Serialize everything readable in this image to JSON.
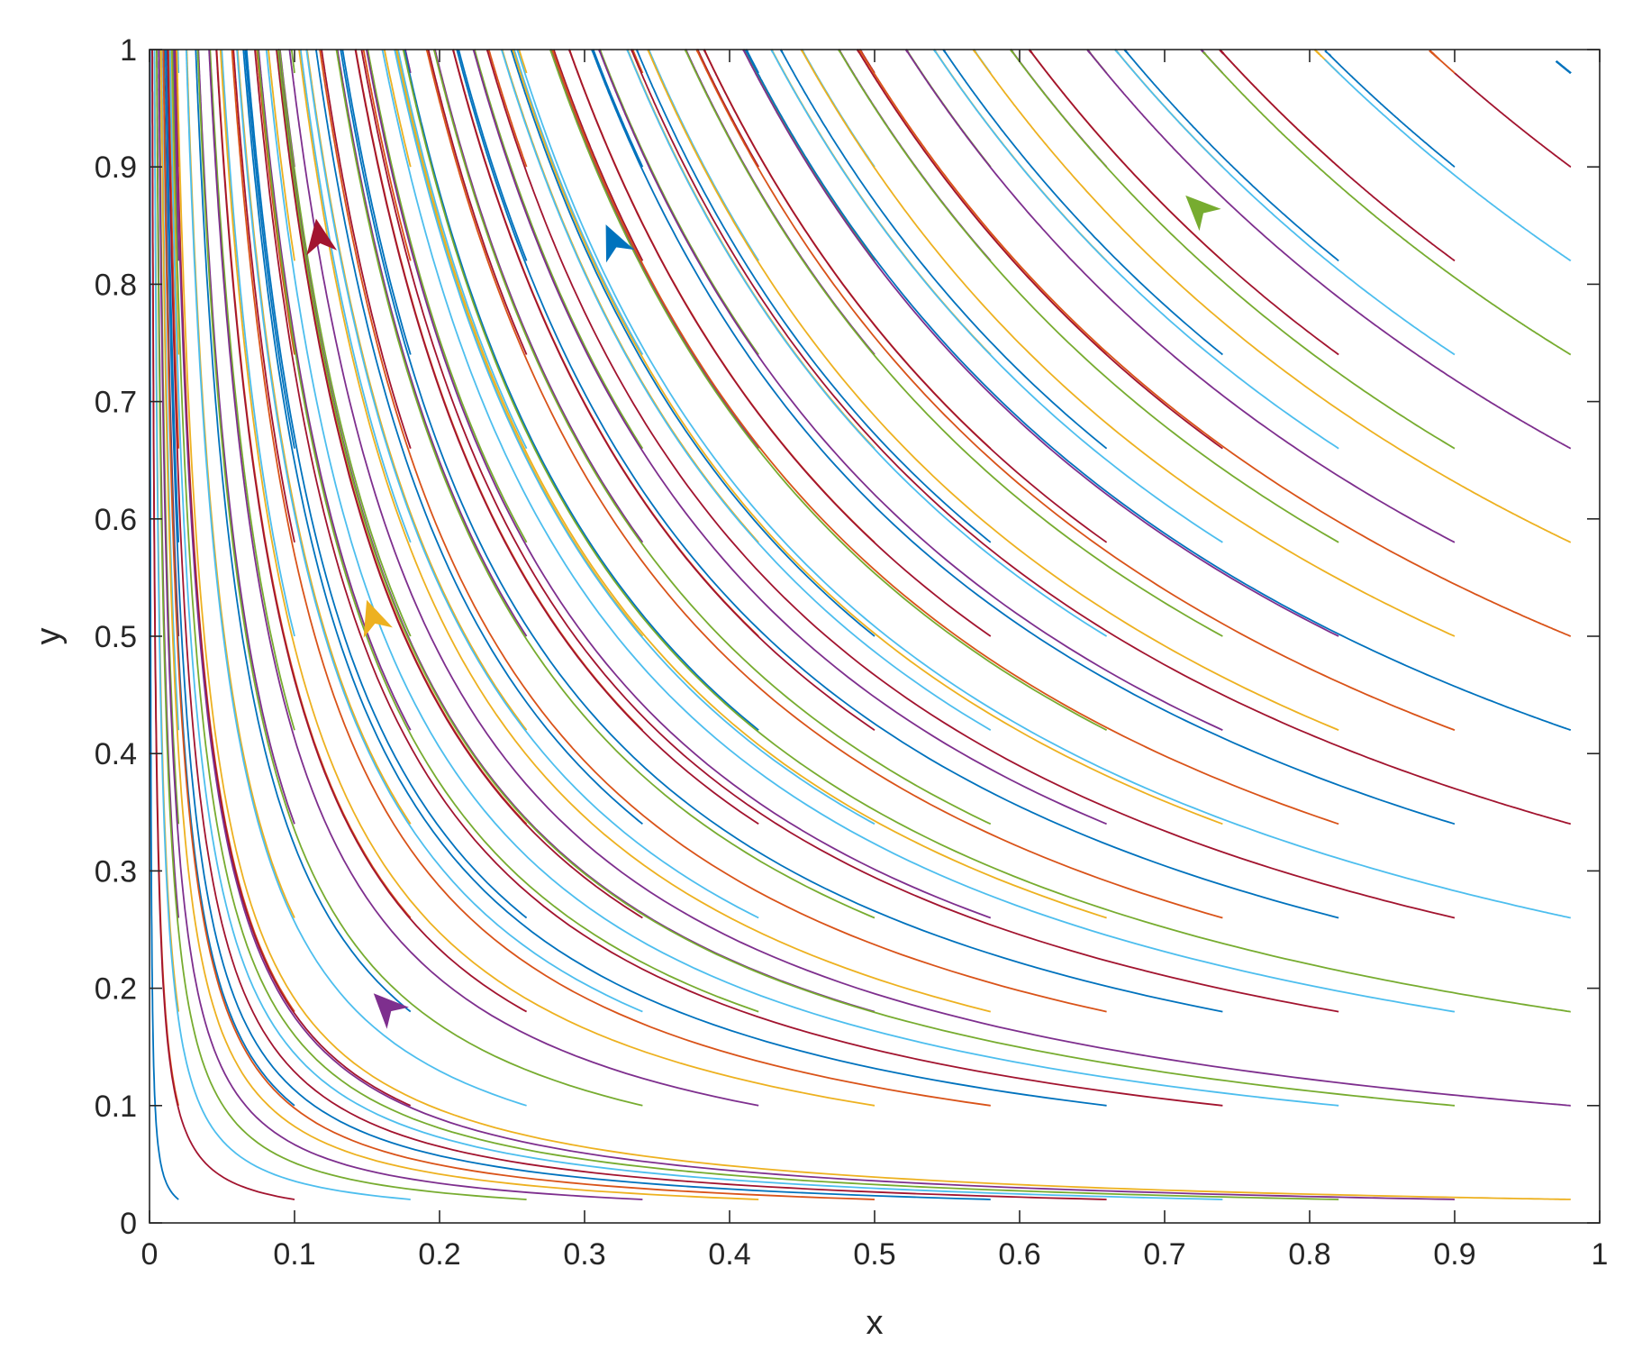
{
  "chart_data": {
    "type": "line",
    "xlabel": "x",
    "ylabel": "y",
    "xlim": [
      0,
      1
    ],
    "ylim": [
      0,
      1
    ],
    "xticks": [
      "0",
      "0.1",
      "0.2",
      "0.3",
      "0.4",
      "0.5",
      "0.6",
      "0.7",
      "0.8",
      "0.9",
      "1"
    ],
    "yticks": [
      "0",
      "0.1",
      "0.2",
      "0.3",
      "0.4",
      "0.5",
      "0.6",
      "0.7",
      "0.8",
      "0.9",
      "1"
    ],
    "grid": false,
    "legend": "none",
    "palette": [
      "#0072BD",
      "#D95319",
      "#EDB120",
      "#7E2F8E",
      "#77AC30",
      "#4DBEEE",
      "#A2142F"
    ],
    "trajectory_start_x": [
      0.02,
      0.1,
      0.18,
      0.26,
      0.34,
      0.42,
      0.5,
      0.58,
      0.66,
      0.74,
      0.82,
      0.9,
      0.98
    ],
    "trajectory_start_y": [
      0.02,
      0.1,
      0.18,
      0.26,
      0.34,
      0.42,
      0.5,
      0.58,
      0.66,
      0.74,
      0.82,
      0.9,
      0.98
    ],
    "trajectory_end": {
      "x": 0,
      "y": 1
    },
    "arrows": [
      {
        "x": 0.115,
        "y": 0.855,
        "color": "#A2142F"
      },
      {
        "x": 0.315,
        "y": 0.85,
        "color": "#0072BD"
      },
      {
        "x": 0.715,
        "y": 0.875,
        "color": "#77AC30"
      },
      {
        "x": 0.15,
        "y": 0.53,
        "color": "#EDB120"
      },
      {
        "x": 0.155,
        "y": 0.195,
        "color": "#7E2F8E"
      }
    ]
  }
}
